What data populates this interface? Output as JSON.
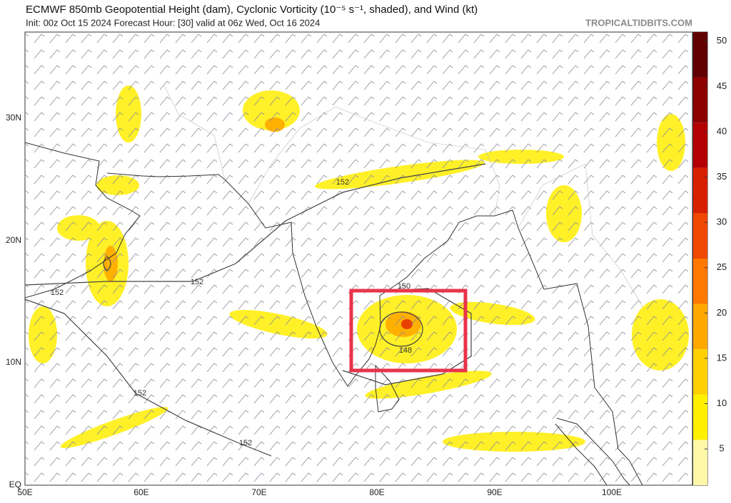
{
  "header": {
    "title": "ECMWF 850mb Geopotential Height (dam), Cyclonic Vorticity (10⁻⁵ s⁻¹, shaded), and Wind (kt)",
    "subtitle": "Init: 00z Oct 15 2024   Forecast Hour: [30]   valid at 06z Wed, Oct 16 2024",
    "credit": "TROPICALTIDBITS.COM"
  },
  "map": {
    "lon_labels": [
      "50E",
      "60E",
      "70E",
      "80E",
      "90E",
      "100E"
    ],
    "lat_labels": [
      "EQ",
      "10N",
      "20N",
      "30N"
    ],
    "contour_labels": [
      "152",
      "152",
      "152",
      "152",
      "152",
      "148",
      "150"
    ],
    "colorbar": {
      "range": [
        1,
        51
      ],
      "ticks": [
        5,
        10,
        15,
        20,
        25,
        30,
        35,
        40,
        45,
        50
      ],
      "colors": [
        "#fff7a8",
        "#fff000",
        "#ffd000",
        "#ffa800",
        "#ff7800",
        "#f04800",
        "#d82000",
        "#b40000",
        "#8c0000",
        "#600000"
      ]
    }
  }
}
